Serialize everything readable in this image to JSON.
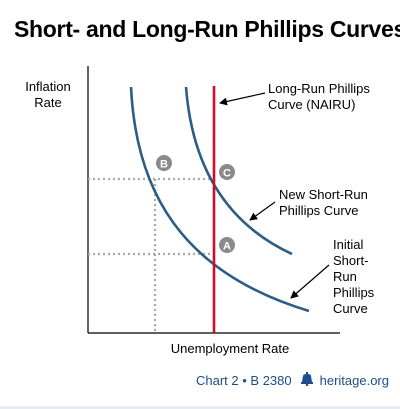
{
  "title": "Short- and Long-Run Phillips Curves",
  "axes": {
    "y_label_line1": "Inflation",
    "y_label_line2": "Rate",
    "x_label": "Unemployment Rate"
  },
  "labels": {
    "lrpc_line1": "Long-Run Phillips",
    "lrpc_line2": "Curve (NAIRU)",
    "new_srpc_line1": "New Short-Run",
    "new_srpc_line2": "Phillips Curve",
    "init_line1": "Initial",
    "init_line2": "Short-",
    "init_line3": "Run",
    "init_line4": "Phillips",
    "init_line5": "Curve"
  },
  "points": {
    "a": "A",
    "b": "B",
    "c": "C"
  },
  "footer": {
    "chart_ref": "Chart 2 • B 2380",
    "site": "heritage.org",
    "logo_icon": "liberty-bell-icon"
  },
  "colors": {
    "curve": "#2b5d86",
    "lrpc": "#c8102e",
    "dotted": "#a8a8a8",
    "marker": "#8a8a8a",
    "footer": "#1a4e8c"
  }
}
